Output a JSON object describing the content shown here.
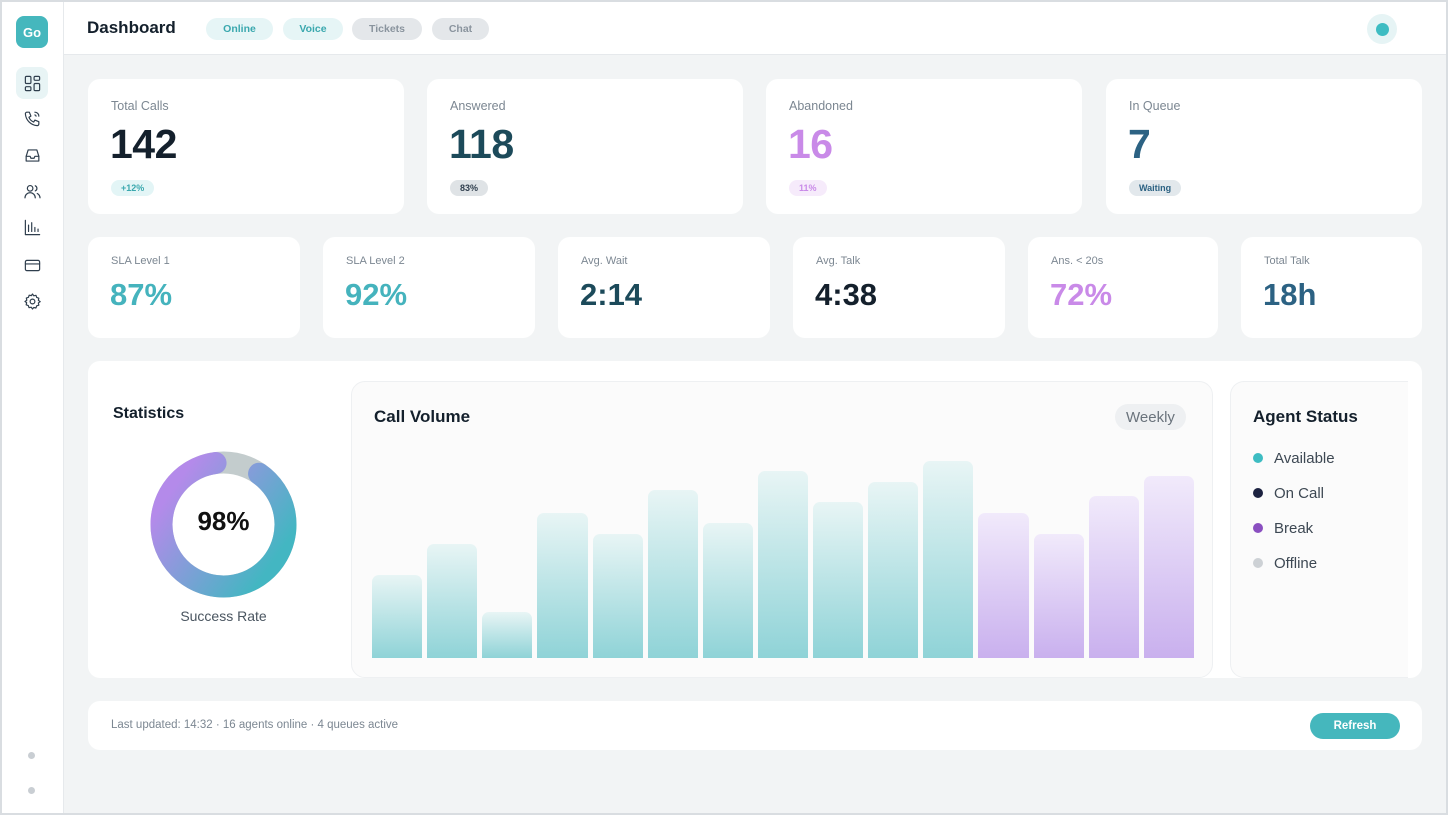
{
  "app": {
    "logo": "Go"
  },
  "sidebar": {
    "items": [
      {
        "icon": "dashboard-icon",
        "active": true
      },
      {
        "icon": "phone-icon",
        "active": false
      },
      {
        "icon": "inbox-icon",
        "active": false
      },
      {
        "icon": "users-icon",
        "active": false
      },
      {
        "icon": "bar-chart-icon",
        "active": false
      },
      {
        "icon": "credit-card-icon",
        "active": false
      },
      {
        "icon": "gear-icon",
        "active": false
      }
    ]
  },
  "header": {
    "title": "Dashboard",
    "channels": [
      {
        "label": "Online",
        "active": true
      },
      {
        "label": "Voice",
        "active": true
      },
      {
        "label": "Tickets",
        "active": false
      },
      {
        "label": "Chat",
        "active": false
      }
    ]
  },
  "kpis": [
    {
      "label": "Total Calls",
      "value": "142",
      "badge": "+12%"
    },
    {
      "label": "Answered",
      "value": "118",
      "badge": "83%"
    },
    {
      "label": "Abandoned",
      "value": "16",
      "badge": "11%"
    },
    {
      "label": "In Queue",
      "value": "7",
      "badge": "Waiting"
    }
  ],
  "metrics": [
    {
      "label": "SLA Level 1",
      "value": "87%"
    },
    {
      "label": "SLA Level 2",
      "value": "92%"
    },
    {
      "label": "Avg. Wait",
      "value": "2:14"
    },
    {
      "label": "Avg. Talk",
      "value": "4:38"
    },
    {
      "label": "Ans. < 20s",
      "value": "72%"
    },
    {
      "label": "Total Talk",
      "value": "18h"
    }
  ],
  "statistics": {
    "title": "Statistics",
    "value": "98%",
    "fraction": 0.98,
    "caption": "Success Rate"
  },
  "call_volume": {
    "title": "Call Volume",
    "range": "Weekly"
  },
  "chart_data": {
    "type": "bar",
    "title": "Call Volume",
    "values": [
      40,
      55,
      22,
      70,
      60,
      81,
      65,
      90,
      75,
      85,
      95,
      70,
      60,
      78,
      88
    ],
    "highlight_start_index": 11,
    "colors": {
      "primary": "#8fd3d7",
      "highlight": "#c9b0ee"
    }
  },
  "agent_status": {
    "title": "Agent Status",
    "items": [
      {
        "label": "Available",
        "color": "#3dbcc2"
      },
      {
        "label": "On Call",
        "color": "#1c2240"
      },
      {
        "label": "Break",
        "color": "#8a4fc0"
      },
      {
        "label": "Offline",
        "color": "#cdd1d5"
      }
    ]
  },
  "footer": {
    "status": "Last updated: 14:32 · 16 agents online · 4 queues active",
    "refresh_label": "Refresh"
  }
}
